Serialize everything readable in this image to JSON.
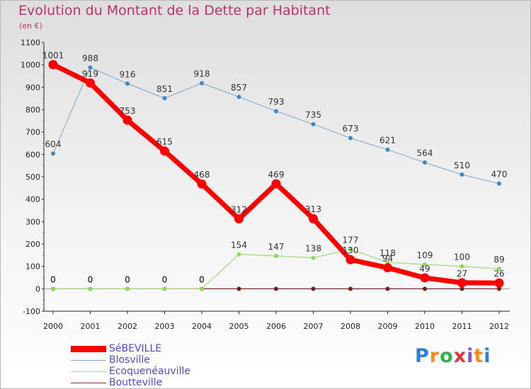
{
  "title": "Evolution du Montant de la Dette par Habitant",
  "unit_label": "(en €)",
  "brand": "Proxiti",
  "chart_data": {
    "type": "line",
    "title": "Evolution du Montant de la Dette par Habitant",
    "ylabel": "(en €)",
    "xlabel": "",
    "x": [
      "2000",
      "2001",
      "2002",
      "2003",
      "2004",
      "2005",
      "2006",
      "2007",
      "2008",
      "2009",
      "2010",
      "2011",
      "2012"
    ],
    "ylim": [
      -100,
      1100
    ],
    "yticks": [
      -100,
      0,
      100,
      200,
      300,
      400,
      500,
      600,
      700,
      800,
      900,
      1000,
      1100
    ],
    "grid": false,
    "legend_position": "bottom-left",
    "series": [
      {
        "name": "SéBEVILLE",
        "color": "#ff0000",
        "values": [
          1001,
          919,
          753,
          615,
          468,
          312,
          469,
          313,
          130,
          94,
          49,
          27,
          26
        ]
      },
      {
        "name": "Blosville",
        "color": "#7aa6d0",
        "values": [
          604,
          988,
          916,
          851,
          918,
          857,
          793,
          735,
          673,
          621,
          564,
          510,
          470
        ]
      },
      {
        "name": "Ecoquenéauville",
        "color": "#a4df7a",
        "values": [
          0,
          0,
          0,
          0,
          0,
          154,
          147,
          138,
          177,
          118,
          109,
          100,
          89
        ]
      },
      {
        "name": "Boutteville",
        "color": "#8a3a3a",
        "values": [
          0,
          0,
          0,
          0,
          0,
          0,
          0,
          0,
          0,
          0,
          0,
          0,
          0
        ]
      }
    ]
  }
}
